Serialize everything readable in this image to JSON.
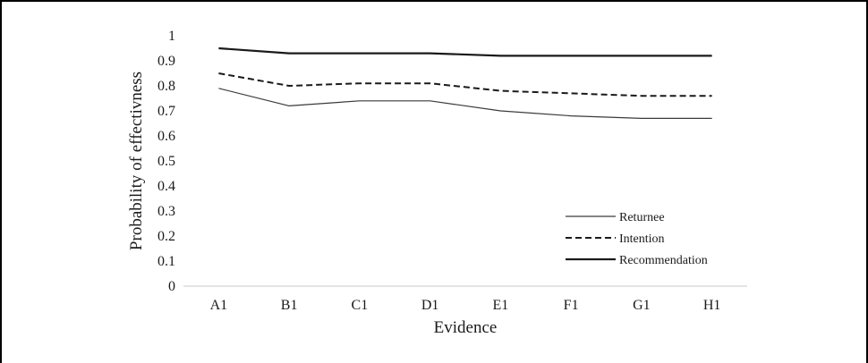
{
  "chart_data": {
    "type": "line",
    "title": "",
    "xlabel": "Evidence",
    "ylabel": "Probability of effectivness",
    "categories": [
      "A1",
      "B1",
      "C1",
      "D1",
      "E1",
      "F1",
      "G1",
      "H1"
    ],
    "y_ticks": [
      "0",
      "0.1",
      "0.2",
      "0.3",
      "0.4",
      "0.5",
      "0.6",
      "0.7",
      "0.8",
      "0.9",
      "1"
    ],
    "ylim": [
      0,
      1
    ],
    "grid": false,
    "legend_position": "bottom-right",
    "series": [
      {
        "name": "Returnee",
        "style": "solid-thin",
        "color": "#3a3a3a",
        "values": [
          0.79,
          0.72,
          0.74,
          0.74,
          0.7,
          0.68,
          0.67,
          0.67
        ]
      },
      {
        "name": "Intention",
        "style": "dashed",
        "color": "#1a1a1a",
        "values": [
          0.85,
          0.8,
          0.81,
          0.81,
          0.78,
          0.77,
          0.76,
          0.76
        ]
      },
      {
        "name": "Recommendation",
        "style": "solid-thick",
        "color": "#1a1a1a",
        "values": [
          0.95,
          0.93,
          0.93,
          0.93,
          0.92,
          0.92,
          0.92,
          0.92
        ]
      }
    ]
  }
}
